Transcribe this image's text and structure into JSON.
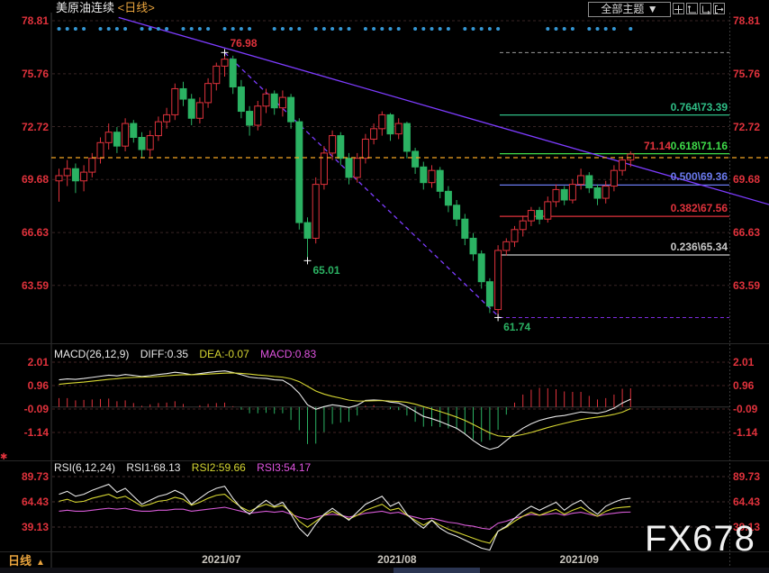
{
  "header": {
    "title": "美原油连续",
    "period_tag": "<日线>",
    "theme_dropdown_label": "全部主题",
    "theme_dropdown_arrow": "▼"
  },
  "toolbar": {
    "buttons": [
      {
        "icon": "move-crosshair-icon"
      },
      {
        "icon": "axis-scale-icon"
      },
      {
        "icon": "axis-pan-icon"
      },
      {
        "icon": "exit-icon"
      }
    ]
  },
  "watermark": "FX678",
  "bottom_bar": {
    "period_label": "日线",
    "period_arrow": "▲"
  },
  "chart_data": [
    {
      "type": "candlestick",
      "panel": "main",
      "y_axis": [
        78.81,
        75.76,
        72.72,
        69.68,
        66.63,
        63.59
      ],
      "x_axis": [
        {
          "label": "2021/07",
          "index": 19.6
        },
        {
          "label": "2021/08",
          "index": 40.8
        },
        {
          "label": "2021/09",
          "index": 62.8
        }
      ],
      "up_color": "#e0323c",
      "down_color": "#2bb263",
      "candles": [
        [
          69.6,
          70.3,
          68.4,
          69.9
        ],
        [
          69.9,
          70.8,
          69.3,
          70.3
        ],
        [
          70.3,
          70.6,
          68.9,
          69.6
        ],
        [
          69.6,
          70.5,
          69.0,
          70.1
        ],
        [
          70.1,
          71.2,
          69.8,
          70.9
        ],
        [
          70.9,
          72.1,
          70.6,
          71.8
        ],
        [
          71.8,
          72.9,
          71.4,
          72.4
        ],
        [
          72.4,
          72.7,
          71.2,
          71.6
        ],
        [
          71.6,
          73.2,
          71.3,
          72.9
        ],
        [
          72.9,
          73.1,
          71.8,
          72.1
        ],
        [
          72.1,
          72.4,
          70.9,
          71.4
        ],
        [
          71.4,
          72.5,
          71.0,
          72.2
        ],
        [
          72.2,
          73.3,
          71.9,
          73.0
        ],
        [
          73.0,
          73.8,
          72.6,
          73.4
        ],
        [
          73.4,
          75.2,
          73.1,
          74.9
        ],
        [
          74.9,
          75.3,
          73.9,
          74.3
        ],
        [
          74.3,
          74.6,
          72.8,
          73.2
        ],
        [
          73.2,
          74.4,
          72.9,
          74.1
        ],
        [
          74.1,
          75.5,
          73.8,
          75.2
        ],
        [
          75.2,
          76.4,
          74.8,
          76.2
        ],
        [
          76.2,
          76.98,
          75.6,
          76.6
        ],
        [
          76.6,
          76.8,
          74.6,
          75.0
        ],
        [
          75.0,
          75.4,
          73.2,
          73.6
        ],
        [
          73.6,
          73.9,
          72.2,
          72.8
        ],
        [
          72.8,
          74.2,
          72.5,
          73.9
        ],
        [
          73.9,
          74.9,
          73.5,
          74.6
        ],
        [
          74.6,
          74.8,
          73.4,
          73.8
        ],
        [
          73.8,
          74.8,
          73.3,
          74.4
        ],
        [
          74.4,
          74.6,
          72.6,
          73.0
        ],
        [
          73.0,
          73.2,
          66.8,
          67.2
        ],
        [
          67.2,
          67.5,
          65.01,
          66.3
        ],
        [
          66.3,
          69.8,
          66.0,
          69.4
        ],
        [
          69.4,
          71.6,
          69.1,
          71.2
        ],
        [
          71.2,
          72.5,
          70.8,
          72.2
        ],
        [
          72.2,
          72.4,
          70.5,
          70.9
        ],
        [
          70.9,
          71.2,
          69.4,
          69.8
        ],
        [
          69.8,
          71.2,
          69.5,
          70.9
        ],
        [
          70.9,
          72.3,
          70.6,
          72.0
        ],
        [
          72.0,
          72.9,
          71.7,
          72.6
        ],
        [
          72.6,
          73.6,
          72.2,
          73.4
        ],
        [
          73.4,
          73.5,
          71.9,
          72.3
        ],
        [
          72.3,
          73.2,
          72.0,
          72.9
        ],
        [
          72.9,
          73.0,
          70.9,
          71.3
        ],
        [
          71.3,
          71.5,
          70.0,
          70.4
        ],
        [
          70.4,
          70.7,
          69.1,
          69.5
        ],
        [
          69.5,
          70.5,
          69.2,
          70.2
        ],
        [
          70.2,
          70.4,
          68.6,
          69.0
        ],
        [
          69.0,
          69.3,
          67.8,
          68.2
        ],
        [
          68.2,
          68.5,
          67.0,
          67.4
        ],
        [
          67.4,
          67.7,
          65.9,
          66.3
        ],
        [
          66.3,
          66.6,
          65.0,
          65.4
        ],
        [
          65.4,
          65.6,
          63.4,
          63.8
        ],
        [
          63.8,
          64.0,
          62.0,
          62.4
        ],
        [
          62.2,
          65.9,
          61.74,
          65.6
        ],
        [
          65.6,
          66.3,
          65.3,
          66.1
        ],
        [
          66.1,
          67.0,
          65.8,
          66.8
        ],
        [
          66.8,
          67.6,
          66.4,
          67.3
        ],
        [
          67.3,
          68.1,
          67.0,
          67.9
        ],
        [
          67.9,
          68.1,
          67.1,
          67.4
        ],
        [
          67.4,
          68.7,
          67.2,
          68.4
        ],
        [
          68.4,
          69.4,
          68.1,
          69.1
        ],
        [
          69.1,
          69.3,
          68.2,
          68.5
        ],
        [
          68.5,
          69.7,
          68.3,
          69.4
        ],
        [
          69.4,
          70.3,
          69.1,
          69.9
        ],
        [
          69.9,
          70.1,
          68.9,
          69.2
        ],
        [
          69.2,
          69.4,
          68.2,
          68.6
        ],
        [
          68.6,
          69.6,
          68.3,
          69.3
        ],
        [
          69.3,
          70.5,
          69.0,
          70.2
        ],
        [
          70.2,
          71.0,
          69.9,
          70.8
        ],
        [
          70.8,
          71.3,
          70.4,
          71.14
        ]
      ],
      "signal_dots": {
        "color": "#3597d4",
        "present": [
          1,
          1,
          1,
          1,
          0,
          1,
          1,
          1,
          1,
          0,
          1,
          1,
          1,
          1,
          0,
          1,
          1,
          1,
          1,
          0,
          1,
          1,
          1,
          1,
          0,
          0,
          1,
          1,
          1,
          1,
          0,
          1,
          1,
          1,
          1,
          1,
          0,
          1,
          1,
          1,
          1,
          1,
          0,
          1,
          1,
          1,
          1,
          1,
          0,
          1,
          1,
          1,
          1,
          1,
          0,
          0,
          0,
          0,
          0,
          1,
          1,
          1,
          1,
          0,
          1,
          1,
          1,
          1,
          0,
          1
        ]
      },
      "swing_markers": [
        {
          "index": 20,
          "price": 76.98,
          "label": "76.98",
          "color": "#e0323c",
          "position": "above"
        },
        {
          "index": 30,
          "price": 65.01,
          "label": "65.01",
          "color": "#2bb263",
          "position": "below"
        },
        {
          "index": 53,
          "price": 61.74,
          "label": "61.74",
          "color": "#2bb263",
          "position": "below"
        }
      ],
      "current_price": {
        "value": 71.14,
        "label": "71.14",
        "line_color": "#f5a623",
        "label_color": "#e0323c"
      },
      "fibonacci": {
        "start_index": 53.2,
        "levels": [
          {
            "label": "0.764\\73.39",
            "value": 73.39,
            "color": "#2fbf87"
          },
          {
            "label": "0.618\\71.16",
            "value": 71.16,
            "color": "#3fdc4a"
          },
          {
            "label": "0.500\\69.36",
            "value": 69.36,
            "color": "#6b7bf0"
          },
          {
            "label": "0.382\\67.56",
            "value": 67.56,
            "color": "#e0323c"
          },
          {
            "label": "0.236\\65.34",
            "value": 65.34,
            "color": "#c8c8c8"
          }
        ],
        "high_line": {
          "value": 76.98,
          "color": "#9a9a9a"
        },
        "low_line": {
          "value": 61.74,
          "color": "#7d2ce0"
        }
      },
      "trendlines": [
        {
          "style": "solid",
          "color": "#7d3cff",
          "from": {
            "index": 7.2,
            "price": 79.0
          },
          "to": {
            "index": 86,
            "price": 68.2
          }
        },
        {
          "style": "dashed",
          "color": "#7d3cff",
          "from": {
            "index": 20,
            "price": 76.98
          },
          "to": {
            "index": 53.2,
            "price": 61.74
          }
        }
      ]
    },
    {
      "type": "macd",
      "panel": "indicator-1",
      "label": "MACD(26,12,9)",
      "readout": {
        "diff": "DIFF:0.35",
        "dea": "DEA:-0.07",
        "macd": "MACD:0.83"
      },
      "colors": {
        "diff": "#e8e8e8",
        "dea": "#d6d632",
        "hist_up": "#e0323c",
        "hist_down": "#2bb263"
      },
      "y_axis": [
        2.01,
        0.96,
        -0.09,
        -1.14
      ],
      "diff": [
        1.22,
        1.26,
        1.24,
        1.28,
        1.33,
        1.38,
        1.43,
        1.4,
        1.46,
        1.42,
        1.37,
        1.41,
        1.46,
        1.5,
        1.56,
        1.52,
        1.45,
        1.5,
        1.55,
        1.59,
        1.62,
        1.55,
        1.45,
        1.34,
        1.3,
        1.28,
        1.22,
        1.2,
        0.98,
        0.62,
        0.1,
        -0.1,
        0.02,
        0.1,
        0.05,
        -0.02,
        0.08,
        0.3,
        0.32,
        0.3,
        0.22,
        0.18,
        0.02,
        -0.2,
        -0.42,
        -0.52,
        -0.65,
        -0.8,
        -0.95,
        -1.2,
        -1.5,
        -1.75,
        -1.9,
        -1.8,
        -1.5,
        -1.2,
        -0.95,
        -0.75,
        -0.6,
        -0.5,
        -0.42,
        -0.38,
        -0.3,
        -0.22,
        -0.25,
        -0.28,
        -0.2,
        -0.05,
        0.18,
        0.35
      ],
      "dea": [
        1.02,
        1.06,
        1.09,
        1.12,
        1.16,
        1.2,
        1.24,
        1.27,
        1.31,
        1.33,
        1.34,
        1.35,
        1.37,
        1.4,
        1.43,
        1.45,
        1.45,
        1.46,
        1.48,
        1.5,
        1.52,
        1.53,
        1.51,
        1.48,
        1.44,
        1.41,
        1.37,
        1.34,
        1.27,
        1.14,
        0.93,
        0.72,
        0.58,
        0.48,
        0.4,
        0.31,
        0.27,
        0.27,
        0.28,
        0.29,
        0.27,
        0.25,
        0.21,
        0.13,
        0.02,
        -0.09,
        -0.2,
        -0.32,
        -0.45,
        -0.6,
        -0.78,
        -0.97,
        -1.16,
        -1.29,
        -1.33,
        -1.3,
        -1.23,
        -1.14,
        -1.03,
        -0.92,
        -0.82,
        -0.73,
        -0.64,
        -0.56,
        -0.5,
        -0.45,
        -0.4,
        -0.33,
        -0.23,
        -0.07
      ]
    },
    {
      "type": "line",
      "panel": "indicator-2",
      "label": "RSI(6,12,24)",
      "readout": {
        "rsi1": "RSI1:68.13",
        "rsi2": "RSI2:59.66",
        "rsi3": "RSI3:54.17"
      },
      "colors": {
        "rsi1": "#e8e8e8",
        "rsi2": "#d6d632",
        "rsi3": "#d65ad6"
      },
      "y_axis": [
        89.73,
        64.43,
        39.13
      ],
      "rsi1": [
        72,
        75,
        70,
        72,
        76,
        79,
        82,
        74,
        78,
        70,
        62,
        66,
        70,
        72,
        76,
        72,
        62,
        68,
        74,
        78,
        80,
        68,
        58,
        52,
        60,
        66,
        60,
        64,
        52,
        38,
        30,
        42,
        52,
        58,
        52,
        46,
        54,
        62,
        66,
        70,
        60,
        64,
        52,
        44,
        38,
        46,
        38,
        33,
        30,
        26,
        22,
        18,
        16,
        35,
        40,
        48,
        55,
        60,
        56,
        60,
        64,
        56,
        62,
        66,
        58,
        52,
        60,
        64,
        67,
        68.13
      ],
      "rsi2": [
        65,
        67,
        64,
        65,
        68,
        70,
        72,
        68,
        70,
        65,
        60,
        62,
        65,
        66,
        69,
        67,
        61,
        64,
        68,
        71,
        72,
        65,
        59,
        55,
        59,
        62,
        59,
        61,
        54,
        45,
        39,
        45,
        51,
        55,
        51,
        47,
        51,
        56,
        59,
        62,
        56,
        58,
        51,
        46,
        41,
        46,
        41,
        37,
        34,
        31,
        28,
        25,
        23,
        35,
        39,
        45,
        50,
        54,
        51,
        54,
        57,
        52,
        56,
        59,
        54,
        50,
        55,
        58,
        59,
        59.66
      ],
      "rsi3": [
        55,
        56,
        55,
        55,
        56,
        57,
        58,
        57,
        58,
        56,
        55,
        55,
        56,
        56,
        57,
        57,
        55,
        56,
        57,
        58,
        59,
        57,
        55,
        53,
        54,
        55,
        54,
        55,
        52,
        49,
        47,
        49,
        51,
        52,
        51,
        49,
        51,
        53,
        54,
        55,
        53,
        54,
        51,
        49,
        47,
        48,
        46,
        44,
        43,
        41,
        40,
        38,
        37,
        43,
        45,
        48,
        50,
        52,
        51,
        52,
        53,
        51,
        53,
        54,
        52,
        50,
        52,
        53,
        54,
        54.17
      ]
    }
  ]
}
